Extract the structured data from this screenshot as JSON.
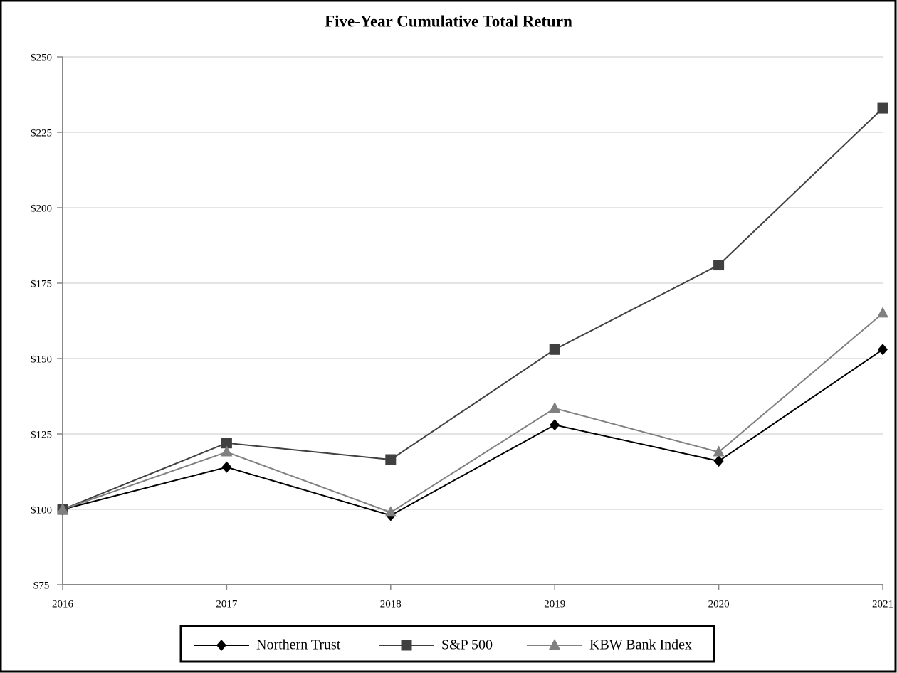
{
  "chart_data": {
    "type": "line",
    "title": "Five-Year Cumulative Total Return",
    "categories": [
      "2016",
      "2017",
      "2018",
      "2019",
      "2020",
      "2021"
    ],
    "series": [
      {
        "name": "Northern Trust",
        "color": "#000000",
        "marker": "diamond",
        "values": [
          100,
          114,
          98,
          128,
          116,
          153
        ]
      },
      {
        "name": "S&P 500",
        "color": "#404040",
        "marker": "square",
        "values": [
          100,
          122,
          116.5,
          153,
          181,
          233
        ]
      },
      {
        "name": "KBW Bank Index",
        "color": "#808080",
        "marker": "triangle",
        "values": [
          100,
          119,
          99,
          133.5,
          119,
          165
        ]
      }
    ],
    "ylim": [
      75,
      250
    ],
    "yticks": [
      {
        "value": 75,
        "label": "$75"
      },
      {
        "value": 100,
        "label": "$100"
      },
      {
        "value": 125,
        "label": "$125"
      },
      {
        "value": 150,
        "label": "$150"
      },
      {
        "value": 175,
        "label": "$175"
      },
      {
        "value": 200,
        "label": "$200"
      },
      {
        "value": 225,
        "label": "$225"
      },
      {
        "value": 250,
        "label": "$250"
      }
    ],
    "grid": true,
    "legend": "bottom"
  }
}
